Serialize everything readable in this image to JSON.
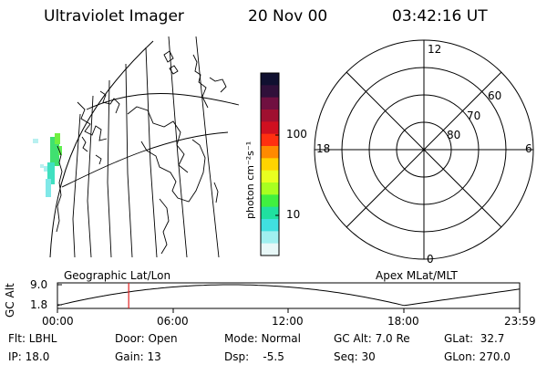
{
  "header": {
    "instrument": "Ultraviolet Imager",
    "date": "20 Nov 00",
    "time": "03:42:16 UT"
  },
  "colorbar": {
    "unit_label": "photon cm⁻²s⁻¹",
    "ticks": [
      "100",
      "10"
    ],
    "colors": [
      "#101030",
      "#30103a",
      "#701040",
      "#a01030",
      "#d01020",
      "#ff3010",
      "#ff8a00",
      "#ffd400",
      "#e8ff20",
      "#a8ff20",
      "#40f040",
      "#20e0a0",
      "#40e0e0",
      "#a0f0f0",
      "#e8f8f8"
    ]
  },
  "polar_plot": {
    "mlt_labels": {
      "top": "12",
      "left": "18",
      "right": "6",
      "bottom": "0"
    },
    "mlat_labels": [
      "60",
      "70",
      "80"
    ]
  },
  "altitude_plot": {
    "left_label": "Geographic Lat/Lon",
    "right_label": "Apex MLat/MLT",
    "y_axis_label": "GC Alt",
    "y_ticks": [
      "9.0",
      "1.8"
    ],
    "x_ticks": [
      "00:00",
      "06:00",
      "12:00",
      "18:00",
      "23:59"
    ],
    "marker_time_hours": 3.7
  },
  "status": {
    "flt": "Flt: LBHL",
    "ip": "IP: 18.0",
    "door": "Door: Open",
    "gain": "Gain: 13",
    "mode": "Mode: Normal",
    "dsp": "Dsp:    -5.5",
    "gc_alt": "GC Alt: 7.0 Re",
    "seq": "Seq: 30",
    "glat": "GLat:  32.7",
    "glon": "GLon: 270.0"
  }
}
